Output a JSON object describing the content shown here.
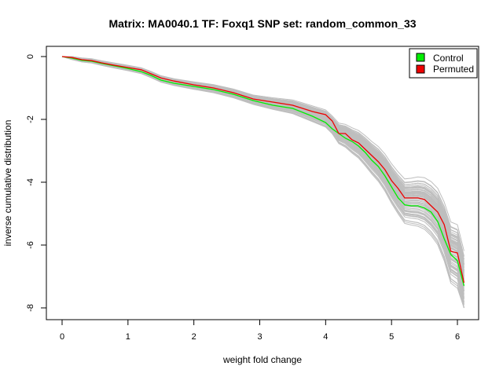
{
  "chart_data": {
    "type": "line",
    "title": "Matrix: MA0040.1 TF: Foxq1 SNP set: random_common_33",
    "xlabel": "weight fold change",
    "ylabel": "inverse cumulative distribution",
    "xlim": [
      0,
      6.1
    ],
    "ylim": [
      -8,
      0
    ],
    "xticks": [
      "0",
      "1",
      "2",
      "3",
      "4",
      "5",
      "6"
    ],
    "yticks": [
      "0",
      "-2",
      "-4",
      "-6",
      "-8"
    ],
    "legend": {
      "position": "top-right",
      "entries": [
        "Control",
        "Permuted"
      ]
    },
    "colors": {
      "control": "#00ee00",
      "permuted": "#ee0000",
      "background_series": "#bebebe",
      "text": "#000000"
    },
    "series": [
      {
        "name": "Control",
        "x": [
          0,
          0.15,
          0.3,
          0.45,
          0.6,
          0.8,
          1.0,
          1.2,
          1.35,
          1.5,
          1.7,
          2.0,
          2.3,
          2.6,
          2.9,
          3.2,
          3.5,
          3.8,
          4.0,
          4.1,
          4.2,
          4.3,
          4.4,
          4.5,
          4.6,
          4.7,
          4.8,
          4.9,
          5.0,
          5.1,
          5.2,
          5.3,
          5.4,
          5.5,
          5.6,
          5.7,
          5.8,
          5.9,
          6.0,
          6.1
        ],
        "y": [
          0,
          -0.05,
          -0.12,
          -0.15,
          -0.22,
          -0.3,
          -0.38,
          -0.48,
          -0.6,
          -0.75,
          -0.85,
          -0.95,
          -1.05,
          -1.2,
          -1.4,
          -1.55,
          -1.65,
          -1.9,
          -2.1,
          -2.3,
          -2.45,
          -2.6,
          -2.7,
          -2.85,
          -3.05,
          -3.3,
          -3.5,
          -3.8,
          -4.15,
          -4.5,
          -4.72,
          -4.75,
          -4.75,
          -4.82,
          -4.95,
          -5.25,
          -5.8,
          -6.3,
          -6.5,
          -7.3
        ]
      },
      {
        "name": "Permuted",
        "x": [
          0,
          0.15,
          0.3,
          0.45,
          0.6,
          0.8,
          1.0,
          1.2,
          1.35,
          1.5,
          1.7,
          2.0,
          2.3,
          2.6,
          2.9,
          3.2,
          3.5,
          3.8,
          4.0,
          4.1,
          4.2,
          4.3,
          4.4,
          4.5,
          4.6,
          4.7,
          4.8,
          4.9,
          5.0,
          5.1,
          5.2,
          5.3,
          5.4,
          5.5,
          5.6,
          5.7,
          5.8,
          5.9,
          6.0,
          6.1
        ],
        "y": [
          0,
          -0.03,
          -0.1,
          -0.13,
          -0.2,
          -0.28,
          -0.35,
          -0.42,
          -0.55,
          -0.68,
          -0.78,
          -0.9,
          -1.0,
          -1.15,
          -1.35,
          -1.45,
          -1.55,
          -1.75,
          -1.85,
          -2.05,
          -2.45,
          -2.45,
          -2.65,
          -2.75,
          -2.95,
          -3.15,
          -3.35,
          -3.6,
          -3.95,
          -4.2,
          -4.5,
          -4.5,
          -4.5,
          -4.55,
          -4.75,
          -4.95,
          -5.35,
          -6.2,
          -6.25,
          -7.2
        ]
      }
    ]
  }
}
